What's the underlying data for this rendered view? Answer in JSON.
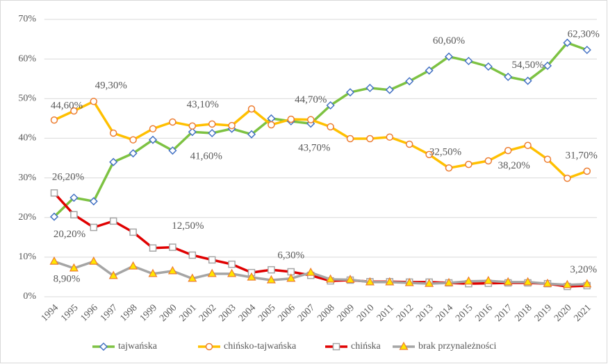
{
  "chart_data": {
    "type": "line",
    "categories": [
      "1994",
      "1995",
      "1996",
      "1997",
      "1998",
      "1999",
      "2000",
      "2001",
      "2002",
      "2003",
      "2004",
      "2005",
      "2006",
      "2007",
      "2008",
      "2009",
      "2010",
      "2011",
      "2012",
      "2013",
      "2014",
      "2015",
      "2016",
      "2017",
      "2018",
      "2019",
      "2020",
      "2021"
    ],
    "ylim": [
      0,
      70
    ],
    "yticks": [
      {
        "value": 0,
        "label": "0%"
      },
      {
        "value": 10,
        "label": "10%"
      },
      {
        "value": 20,
        "label": "20%"
      },
      {
        "value": 30,
        "label": "30%"
      },
      {
        "value": 40,
        "label": "40%"
      },
      {
        "value": 50,
        "label": "50%"
      },
      {
        "value": 60,
        "label": "60%"
      },
      {
        "value": 70,
        "label": "70%"
      }
    ],
    "grid": true,
    "legend": "bottom",
    "series": [
      {
        "name": "tajwańska",
        "color": "#7dc242",
        "marker": "diamond",
        "marker_color": "#4472c4",
        "values": [
          20.2,
          25.0,
          24.1,
          34.0,
          36.2,
          39.6,
          36.9,
          41.6,
          41.3,
          42.4,
          41.0,
          45.0,
          44.3,
          43.7,
          48.3,
          51.6,
          52.7,
          52.2,
          54.4,
          57.1,
          60.6,
          59.5,
          58.1,
          55.5,
          54.5,
          58.3,
          64.1,
          62.3
        ],
        "value_labels": [
          "20,20%",
          null,
          null,
          null,
          null,
          null,
          null,
          "41,60%",
          null,
          null,
          null,
          null,
          null,
          "43,70%",
          null,
          null,
          null,
          null,
          null,
          null,
          "60,60%",
          null,
          null,
          null,
          "54,50%",
          null,
          null,
          "62,30%"
        ]
      },
      {
        "name": "chińsko-tajwańska",
        "color": "#ffc000",
        "marker": "circle",
        "marker_color": "#ed7d31",
        "values": [
          44.6,
          46.9,
          49.3,
          41.3,
          39.6,
          42.4,
          44.1,
          43.1,
          43.6,
          43.2,
          47.4,
          43.4,
          44.8,
          44.7,
          42.9,
          39.9,
          39.9,
          40.3,
          38.5,
          35.9,
          32.5,
          33.4,
          34.3,
          36.9,
          38.2,
          34.7,
          29.9,
          31.7
        ],
        "value_labels": [
          "44,60%",
          null,
          "49,30%",
          null,
          null,
          null,
          null,
          "43,10%",
          null,
          null,
          null,
          null,
          null,
          "44,70%",
          null,
          null,
          null,
          null,
          null,
          null,
          "32,50%",
          null,
          null,
          null,
          "38,20%",
          null,
          null,
          "31,70%"
        ]
      },
      {
        "name": "chińska",
        "color": "#e00000",
        "marker": "square",
        "marker_color": "#a5a5a5",
        "values": [
          26.2,
          20.7,
          17.5,
          19.1,
          16.3,
          12.3,
          12.5,
          10.5,
          9.3,
          8.2,
          6.1,
          6.8,
          6.3,
          5.4,
          4.0,
          4.2,
          3.8,
          3.8,
          3.7,
          3.7,
          3.5,
          3.3,
          3.4,
          3.5,
          3.5,
          3.3,
          2.6,
          2.8
        ],
        "value_labels": [
          "26,20%",
          null,
          null,
          null,
          null,
          null,
          "12,50%",
          null,
          null,
          null,
          null,
          null,
          "6,30%",
          null,
          null,
          null,
          null,
          null,
          null,
          null,
          null,
          null,
          null,
          null,
          null,
          null,
          null,
          null
        ]
      },
      {
        "name": "brak przynależności",
        "color": "#a5a5a5",
        "marker": "triangle",
        "marker_color": "#ffe600",
        "values": [
          8.9,
          7.2,
          8.9,
          5.3,
          7.7,
          5.8,
          6.5,
          4.6,
          5.8,
          5.8,
          4.9,
          4.2,
          4.6,
          6.1,
          4.4,
          4.3,
          3.7,
          3.7,
          3.5,
          3.3,
          3.5,
          3.9,
          4.0,
          3.7,
          3.7,
          3.3,
          3.0,
          3.2
        ],
        "value_labels": [
          "8,90%",
          null,
          null,
          null,
          null,
          null,
          null,
          null,
          null,
          null,
          null,
          null,
          null,
          null,
          null,
          null,
          null,
          null,
          null,
          null,
          null,
          null,
          null,
          null,
          null,
          null,
          null,
          "3,20%"
        ]
      }
    ]
  }
}
